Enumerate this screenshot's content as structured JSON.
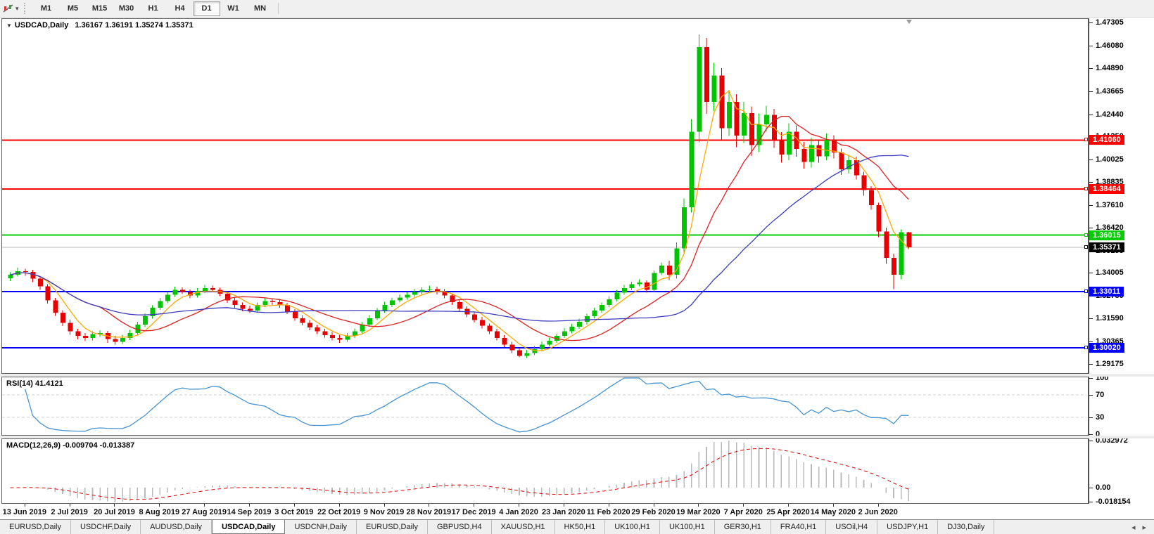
{
  "toolbar": {
    "tool_icon": "chart-tools",
    "dropdown_caret": "▾",
    "timeframes": [
      "M1",
      "M5",
      "M15",
      "M30",
      "H1",
      "H4",
      "D1",
      "W1",
      "MN"
    ],
    "active_timeframe": "D1"
  },
  "chart_title": {
    "caret": "▼",
    "symbol_period": "USDCAD,Daily",
    "ohlc_text": "1.36167 1.36191 1.35274 1.35371"
  },
  "indicators": {
    "rsi": {
      "label": "RSI(14) 41.4121",
      "period": 14,
      "axis_ticks": [
        "100",
        "70",
        "30",
        "0"
      ],
      "level_lines": [
        70,
        30
      ]
    },
    "macd": {
      "label": "MACD(12,26,9) -0.009704 -0.013387",
      "axis_top": "0.032972",
      "axis_zero": "0.00",
      "axis_bottom": "-0.018154"
    }
  },
  "tabs": {
    "items": [
      "EURUSD,Daily",
      "USDCHF,Daily",
      "AUDUSD,Daily",
      "USDCAD,Daily",
      "USDCNH,Daily",
      "EURUSD,Daily",
      "GBPUSD,H4",
      "XAUUSD,H1",
      "HK50,H1",
      "UK100,H1",
      "UK100,H1",
      "GER30,H1",
      "FRA40,H1",
      "USOil,H4",
      "USDJPY,H1",
      "DJ30,Daily"
    ],
    "active_index": 3,
    "scroll_left": "◂",
    "scroll_right": "▸"
  },
  "chart_data": {
    "type": "candlestick",
    "symbol": "USDCAD",
    "timeframe": "Daily",
    "ohlc_current": {
      "open": 1.36167,
      "high": 1.36191,
      "low": 1.35274,
      "close": 1.35371
    },
    "y_ticks": [
      "1.47305",
      "1.46080",
      "1.44890",
      "1.43665",
      "1.42440",
      "1.41250",
      "1.40025",
      "1.38835",
      "1.37610",
      "1.36420",
      "1.35195",
      "1.34005",
      "1.32780",
      "1.31590",
      "1.30365",
      "1.29175"
    ],
    "x_labels": [
      "13 Jun 2019",
      "2 Jul 2019",
      "20 Jul 2019",
      "8 Aug 2019",
      "27 Aug 2019",
      "14 Sep 2019",
      "3 Oct 2019",
      "22 Oct 2019",
      "9 Nov 2019",
      "28 Nov 2019",
      "17 Dec 2019",
      "4 Jan 2020",
      "23 Jan 2020",
      "11 Feb 2020",
      "29 Feb 2020",
      "19 Mar 2020",
      "7 Apr 2020",
      "25 Apr 2020",
      "14 May 2020",
      "2 Jun 2020"
    ],
    "levels": [
      {
        "price": 1.4106,
        "label": "1.41060",
        "color": "#ff0000"
      },
      {
        "price": 1.38464,
        "label": "1.38464",
        "color": "#ff0000"
      },
      {
        "price": 1.36015,
        "label": "1.36015",
        "color": "#00cc00"
      },
      {
        "price": 1.33011,
        "label": "1.33011",
        "color": "#0000ff"
      },
      {
        "price": 1.3002,
        "label": "1.30020",
        "color": "#0000ff"
      }
    ],
    "current_price": {
      "price": 1.35371,
      "label": "1.35371",
      "badge_color": "#000000",
      "line_color": "#b8b8b8"
    },
    "colors": {
      "up": "#00c400",
      "down": "#e60000",
      "ma_fast": "#ffa800",
      "ma_mid": "#e02020",
      "ma_slow": "#3b3bc0",
      "rsi": "#4793d2",
      "rsi_level": "#cfcfcf",
      "macd_histogram": "#bababa",
      "macd_signal": "#e00000"
    },
    "moving_averages": [
      {
        "period": 5,
        "color_key": "ma_fast"
      },
      {
        "period": 13,
        "color_key": "ma_mid"
      },
      {
        "period": 30,
        "color_key": "ma_slow"
      }
    ],
    "candles": [
      [
        1.3372,
        1.3404,
        1.3358,
        1.339
      ],
      [
        1.339,
        1.3428,
        1.3381,
        1.341
      ],
      [
        1.341,
        1.3422,
        1.3386,
        1.3405
      ],
      [
        1.3405,
        1.3417,
        1.3352,
        1.337
      ],
      [
        1.337,
        1.3382,
        1.3311,
        1.333
      ],
      [
        1.333,
        1.3341,
        1.3237,
        1.3255
      ],
      [
        1.3255,
        1.3268,
        1.3173,
        1.319
      ],
      [
        1.319,
        1.3202,
        1.3118,
        1.3135
      ],
      [
        1.3135,
        1.3151,
        1.3072,
        1.309
      ],
      [
        1.309,
        1.3104,
        1.3048,
        1.3065
      ],
      [
        1.3065,
        1.308,
        1.3038,
        1.3055
      ],
      [
        1.3055,
        1.3091,
        1.3042,
        1.3075
      ],
      [
        1.3075,
        1.3096,
        1.3061,
        1.308
      ],
      [
        1.308,
        1.3092,
        1.3029,
        1.305
      ],
      [
        1.305,
        1.3066,
        1.302,
        1.3035
      ],
      [
        1.3035,
        1.3072,
        1.3023,
        1.3055
      ],
      [
        1.3055,
        1.3097,
        1.3044,
        1.308
      ],
      [
        1.308,
        1.314,
        1.3069,
        1.3125
      ],
      [
        1.3125,
        1.3186,
        1.3113,
        1.317
      ],
      [
        1.317,
        1.3229,
        1.3158,
        1.3215
      ],
      [
        1.3215,
        1.3268,
        1.3204,
        1.325
      ],
      [
        1.325,
        1.3299,
        1.3239,
        1.3285
      ],
      [
        1.3285,
        1.3327,
        1.3273,
        1.331
      ],
      [
        1.331,
        1.3324,
        1.3288,
        1.33
      ],
      [
        1.33,
        1.3312,
        1.3266,
        1.328
      ],
      [
        1.328,
        1.3319,
        1.3269,
        1.3305
      ],
      [
        1.3305,
        1.3337,
        1.3294,
        1.332
      ],
      [
        1.332,
        1.3333,
        1.3297,
        1.331
      ],
      [
        1.331,
        1.3322,
        1.3276,
        1.329
      ],
      [
        1.329,
        1.3301,
        1.3241,
        1.3255
      ],
      [
        1.3255,
        1.327,
        1.3216,
        1.323
      ],
      [
        1.323,
        1.3243,
        1.3196,
        1.321
      ],
      [
        1.321,
        1.3226,
        1.3187,
        1.32
      ],
      [
        1.32,
        1.3244,
        1.3189,
        1.323
      ],
      [
        1.323,
        1.3267,
        1.3219,
        1.325
      ],
      [
        1.325,
        1.3262,
        1.3231,
        1.3245
      ],
      [
        1.3245,
        1.3257,
        1.3216,
        1.323
      ],
      [
        1.323,
        1.3241,
        1.3181,
        1.3195
      ],
      [
        1.3195,
        1.3208,
        1.3146,
        1.316
      ],
      [
        1.316,
        1.3174,
        1.3121,
        1.3135
      ],
      [
        1.3135,
        1.315,
        1.3096,
        1.311
      ],
      [
        1.311,
        1.3123,
        1.3075,
        1.309
      ],
      [
        1.309,
        1.3104,
        1.3057,
        1.307
      ],
      [
        1.307,
        1.3086,
        1.3042,
        1.3055
      ],
      [
        1.3055,
        1.307,
        1.3029,
        1.3045
      ],
      [
        1.3045,
        1.3081,
        1.3034,
        1.3065
      ],
      [
        1.3065,
        1.3106,
        1.3054,
        1.309
      ],
      [
        1.309,
        1.3139,
        1.3079,
        1.3125
      ],
      [
        1.3125,
        1.3176,
        1.3114,
        1.316
      ],
      [
        1.316,
        1.3214,
        1.3149,
        1.32
      ],
      [
        1.32,
        1.3247,
        1.3189,
        1.323
      ],
      [
        1.323,
        1.3269,
        1.3219,
        1.3255
      ],
      [
        1.3255,
        1.3287,
        1.3244,
        1.327
      ],
      [
        1.327,
        1.3298,
        1.3259,
        1.3285
      ],
      [
        1.3285,
        1.3317,
        1.3274,
        1.33
      ],
      [
        1.33,
        1.3323,
        1.3289,
        1.331
      ],
      [
        1.331,
        1.3332,
        1.3299,
        1.3315
      ],
      [
        1.3315,
        1.3327,
        1.3287,
        1.33
      ],
      [
        1.33,
        1.3314,
        1.3266,
        1.328
      ],
      [
        1.328,
        1.3291,
        1.3231,
        1.3245
      ],
      [
        1.3245,
        1.326,
        1.3196,
        1.321
      ],
      [
        1.321,
        1.3223,
        1.3165,
        1.318
      ],
      [
        1.318,
        1.3194,
        1.3137,
        1.315
      ],
      [
        1.315,
        1.3166,
        1.3106,
        1.312
      ],
      [
        1.312,
        1.3131,
        1.3075,
        1.309
      ],
      [
        1.309,
        1.3104,
        1.3042,
        1.3055
      ],
      [
        1.3055,
        1.3069,
        1.3006,
        1.302
      ],
      [
        1.302,
        1.3034,
        1.2975,
        1.299
      ],
      [
        1.299,
        1.3002,
        1.2952,
        1.296
      ],
      [
        1.296,
        1.2992,
        1.2949,
        1.2975
      ],
      [
        1.2975,
        1.3011,
        1.2964,
        1.2995
      ],
      [
        1.2995,
        1.3036,
        1.2984,
        1.302
      ],
      [
        1.302,
        1.3057,
        1.3009,
        1.304
      ],
      [
        1.304,
        1.3078,
        1.3029,
        1.3065
      ],
      [
        1.3065,
        1.3107,
        1.3054,
        1.309
      ],
      [
        1.309,
        1.3129,
        1.3079,
        1.3115
      ],
      [
        1.3115,
        1.3157,
        1.3104,
        1.314
      ],
      [
        1.314,
        1.3183,
        1.3126,
        1.317
      ],
      [
        1.317,
        1.3216,
        1.3159,
        1.32
      ],
      [
        1.32,
        1.3244,
        1.3189,
        1.323
      ],
      [
        1.323,
        1.3277,
        1.3219,
        1.326
      ],
      [
        1.326,
        1.3309,
        1.3249,
        1.3295
      ],
      [
        1.3295,
        1.3336,
        1.3284,
        1.332
      ],
      [
        1.332,
        1.3354,
        1.3309,
        1.334
      ],
      [
        1.334,
        1.3367,
        1.3329,
        1.335
      ],
      [
        1.335,
        1.3361,
        1.3296,
        1.331
      ],
      [
        1.331,
        1.3414,
        1.3299,
        1.34
      ],
      [
        1.34,
        1.3457,
        1.3389,
        1.344
      ],
      [
        1.344,
        1.3465,
        1.3362,
        1.339
      ],
      [
        1.339,
        1.3562,
        1.3371,
        1.353
      ],
      [
        1.353,
        1.3796,
        1.3509,
        1.375
      ],
      [
        1.375,
        1.4218,
        1.3722,
        1.415
      ],
      [
        1.415,
        1.4668,
        1.4094,
        1.46
      ],
      [
        1.46,
        1.4649,
        1.4246,
        1.431
      ],
      [
        1.431,
        1.4517,
        1.4261,
        1.445
      ],
      [
        1.445,
        1.4489,
        1.4106,
        1.417
      ],
      [
        1.417,
        1.4372,
        1.4129,
        1.431
      ],
      [
        1.431,
        1.4351,
        1.4069,
        1.413
      ],
      [
        1.413,
        1.4309,
        1.4091,
        1.425
      ],
      [
        1.425,
        1.4286,
        1.4021,
        1.408
      ],
      [
        1.408,
        1.4247,
        1.4042,
        1.419
      ],
      [
        1.419,
        1.4288,
        1.4151,
        1.424
      ],
      [
        1.424,
        1.4272,
        1.4064,
        1.411
      ],
      [
        1.411,
        1.4149,
        1.3986,
        1.403
      ],
      [
        1.403,
        1.4196,
        1.3999,
        1.415
      ],
      [
        1.415,
        1.4184,
        1.4018,
        1.406
      ],
      [
        1.406,
        1.4096,
        1.3954,
        1.399
      ],
      [
        1.399,
        1.4118,
        1.3961,
        1.408
      ],
      [
        1.408,
        1.4107,
        1.3987,
        1.402
      ],
      [
        1.402,
        1.4141,
        1.3999,
        1.411
      ],
      [
        1.411,
        1.4132,
        1.4009,
        1.404
      ],
      [
        1.404,
        1.4061,
        1.3921,
        1.395
      ],
      [
        1.395,
        1.4027,
        1.3929,
        1.4
      ],
      [
        1.4,
        1.4019,
        1.3896,
        1.392
      ],
      [
        1.392,
        1.3937,
        1.3811,
        1.384
      ],
      [
        1.384,
        1.3861,
        1.3736,
        1.376
      ],
      [
        1.376,
        1.3774,
        1.3591,
        1.362
      ],
      [
        1.362,
        1.3641,
        1.3449,
        1.348
      ],
      [
        1.348,
        1.3503,
        1.3315,
        1.339
      ],
      [
        1.339,
        1.3631,
        1.3367,
        1.3617
      ],
      [
        1.36167,
        1.36191,
        1.35274,
        1.35371
      ]
    ]
  }
}
